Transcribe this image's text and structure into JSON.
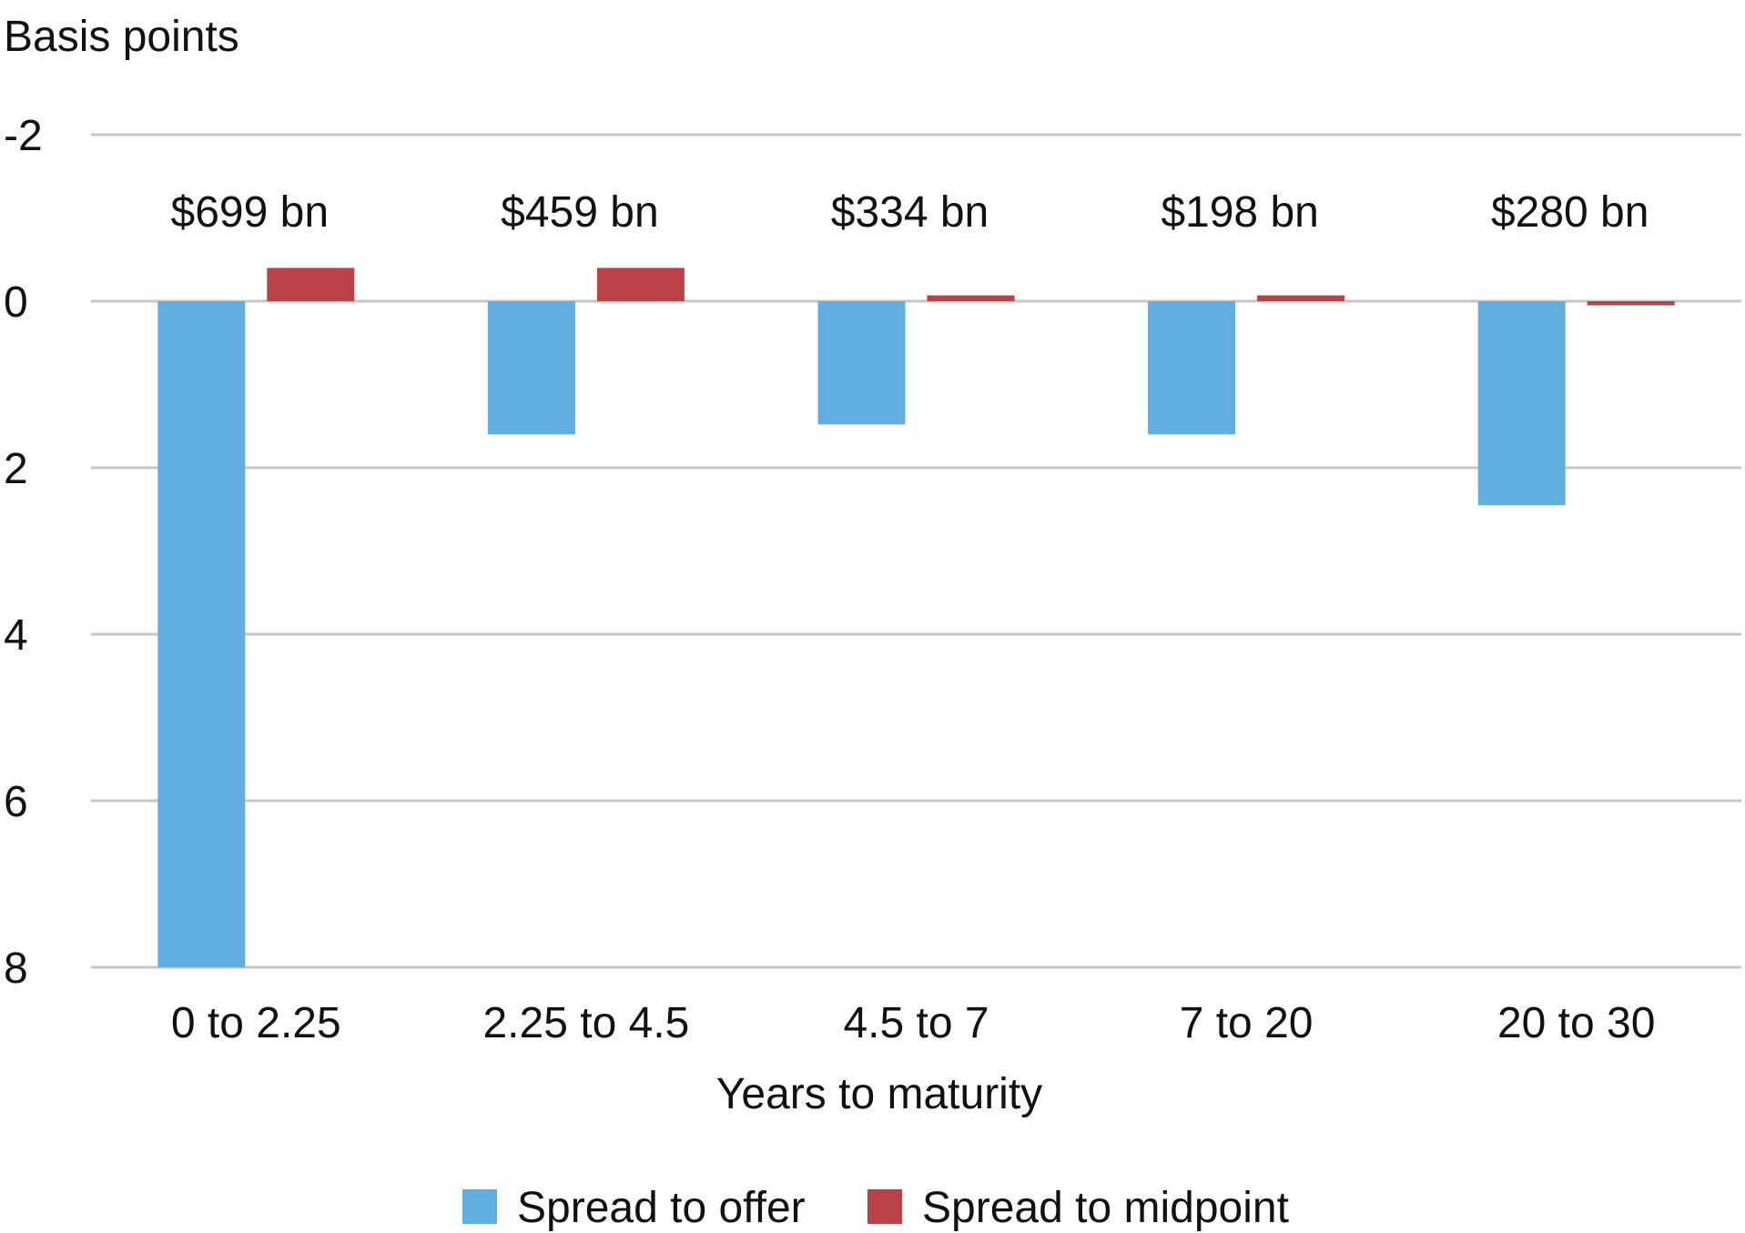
{
  "chart_data": {
    "type": "bar",
    "ylabel": "Basis points",
    "xlabel": "Years to maturity",
    "yaxis_inverted": true,
    "ylim": [
      -2,
      8
    ],
    "yticks": [
      "-2",
      "0",
      "2",
      "4",
      "6",
      "8"
    ],
    "ytick_values": [
      -2,
      0,
      2,
      4,
      6,
      8
    ],
    "categories": [
      "0 to 2.25",
      "2.25 to 4.5",
      "4.5 to 7",
      "7 to 20",
      "20 to 30"
    ],
    "annotations": [
      "$699 bn",
      "$459 bn",
      "$334 bn",
      "$198 bn",
      "$280 bn"
    ],
    "series": [
      {
        "name": "Spread to offer",
        "color": "#62AEE0",
        "values": [
          8.0,
          1.6,
          1.48,
          1.6,
          2.45
        ]
      },
      {
        "name": "Spread to midpoint",
        "color": "#BA4246",
        "values": [
          -0.4,
          -0.4,
          -0.07,
          -0.07,
          0.05
        ]
      }
    ],
    "grid": true,
    "legend": "bottom-center"
  }
}
